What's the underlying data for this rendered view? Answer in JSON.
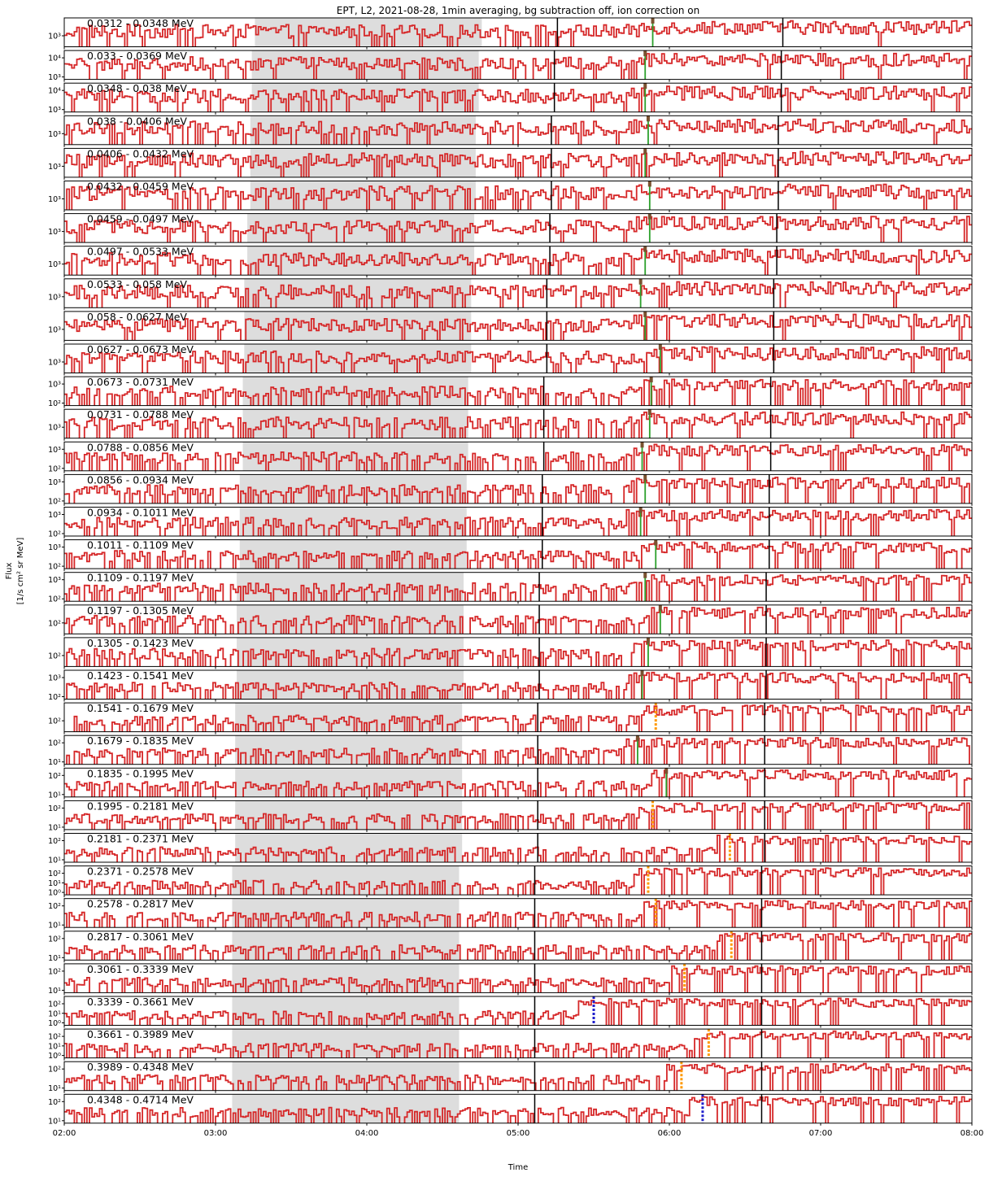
{
  "chart_data": {
    "type": "line",
    "title": "EPT, L2, 2021-08-28, 1min averaging, bg subtraction off, ion correction on",
    "xlabel": "Time",
    "ylabel_line1": "Flux",
    "ylabel_line2": "[1/s cm² sr MeV]",
    "x_ticks": [
      "02:00",
      "03:00",
      "04:00",
      "05:00",
      "06:00",
      "07:00",
      "08:00"
    ],
    "xlim_hours": [
      2.0,
      8.0
    ],
    "y_scale": "log",
    "grid": false,
    "colors": {
      "flux_line": "#d62728",
      "onset_green": "#2ca02c",
      "onset_orange": "#ff9900",
      "onset_blue": "#1f1fcc",
      "background_window": "#dddddd",
      "marker_black": "#000000"
    },
    "panels": [
      {
        "label": "0.0312 - 0.0348 MeV",
        "bg": [
          3.26,
          4.76
        ],
        "black": [
          5.26,
          6.75
        ],
        "onset": {
          "t": 5.89,
          "color": "green"
        },
        "yticks": [
          "10³"
        ],
        "level": [
          500,
          4000
        ]
      },
      {
        "label": "0.033 - 0.0369 MeV",
        "bg": [
          3.24,
          4.74
        ],
        "black": [
          5.24,
          6.74
        ],
        "onset": {
          "t": 5.84,
          "color": "green"
        },
        "yticks": [
          "10⁴",
          "10³"
        ],
        "level": [
          800,
          6000
        ]
      },
      {
        "label": "0.0348 - 0.038 MeV",
        "bg": [
          3.24,
          4.74
        ],
        "black": [
          5.24,
          6.74
        ],
        "onset": {
          "t": 5.84,
          "color": "green"
        },
        "yticks": [
          "10⁴",
          "10³"
        ],
        "level": [
          700,
          5000
        ]
      },
      {
        "label": "0.038 - 0.0406 MeV",
        "bg": [
          3.23,
          4.72
        ],
        "black": [
          5.22,
          6.72
        ],
        "onset": {
          "t": 5.86,
          "color": "green"
        },
        "yticks": [
          "10³"
        ],
        "level": [
          600,
          4000
        ]
      },
      {
        "label": "0.0406 - 0.0432 MeV",
        "bg": [
          3.23,
          4.72
        ],
        "black": [
          5.22,
          6.72
        ],
        "onset": {
          "t": 5.84,
          "color": "green"
        },
        "yticks": [
          "10³"
        ],
        "level": [
          500,
          3000
        ]
      },
      {
        "label": "0.0432 - 0.0459 MeV",
        "bg": [
          3.23,
          4.72
        ],
        "black": [
          5.22,
          6.72
        ],
        "onset": {
          "t": 5.87,
          "color": "green"
        },
        "yticks": [
          "10³"
        ],
        "level": [
          500,
          3000
        ]
      },
      {
        "label": "0.0459 - 0.0497 MeV",
        "bg": [
          3.21,
          4.71
        ],
        "black": [
          5.21,
          6.71
        ],
        "onset": {
          "t": 5.87,
          "color": "green"
        },
        "yticks": [
          "10³"
        ],
        "level": [
          400,
          3000
        ]
      },
      {
        "label": "0.0497 - 0.0533 MeV",
        "bg": [
          3.21,
          4.71
        ],
        "black": [
          5.21,
          6.71
        ],
        "onset": {
          "t": 5.84,
          "color": "green"
        },
        "yticks": [
          "10³"
        ],
        "level": [
          400,
          3000
        ]
      },
      {
        "label": "0.0533 - 0.058 MeV",
        "bg": [
          3.19,
          4.69
        ],
        "black": [
          5.19,
          6.69
        ],
        "onset": {
          "t": 5.81,
          "color": "green"
        },
        "yticks": [
          "10³"
        ],
        "level": [
          400,
          3000
        ]
      },
      {
        "label": "0.058 - 0.0627 MeV",
        "bg": [
          3.19,
          4.69
        ],
        "black": [
          5.19,
          6.69
        ],
        "onset": {
          "t": 5.84,
          "color": "green"
        },
        "yticks": [
          "10³"
        ],
        "level": [
          300,
          2500
        ]
      },
      {
        "label": "0.0627 - 0.0673 MeV",
        "bg": [
          3.19,
          4.69
        ],
        "black": [
          5.19,
          6.69
        ],
        "onset": {
          "t": 5.94,
          "color": "green"
        },
        "yticks": [
          "10³"
        ],
        "level": [
          300,
          2500
        ]
      },
      {
        "label": "0.0673 - 0.0731 MeV",
        "bg": [
          3.18,
          4.67
        ],
        "black": [
          5.17,
          6.67
        ],
        "onset": {
          "t": 5.88,
          "color": "green"
        },
        "yticks": [
          "10³",
          "10²"
        ],
        "level": [
          150,
          2000
        ]
      },
      {
        "label": "0.0731 - 0.0788 MeV",
        "bg": [
          3.18,
          4.67
        ],
        "black": [
          5.17,
          6.67
        ],
        "onset": {
          "t": 5.87,
          "color": "green"
        },
        "yticks": [
          "10³"
        ],
        "level": [
          200,
          1800
        ]
      },
      {
        "label": "0.0788 - 0.0856 MeV",
        "bg": [
          3.18,
          4.67
        ],
        "black": [
          5.17,
          6.67
        ],
        "onset": {
          "t": 5.82,
          "color": "green"
        },
        "yticks": [
          "10³",
          "10²"
        ],
        "level": [
          100,
          1500
        ]
      },
      {
        "label": "0.0856 - 0.0934 MeV",
        "bg": [
          3.16,
          4.66
        ],
        "black": [
          5.16,
          6.66
        ],
        "onset": {
          "t": 5.84,
          "color": "green"
        },
        "yticks": [
          "10³",
          "10²"
        ],
        "level": [
          100,
          1500
        ]
      },
      {
        "label": "0.0934 - 0.1011 MeV",
        "bg": [
          3.16,
          4.66
        ],
        "black": [
          5.16,
          6.66
        ],
        "onset": {
          "t": 5.81,
          "color": "green"
        },
        "yticks": [
          "10³",
          "10²"
        ],
        "level": [
          80,
          1200
        ]
      },
      {
        "label": "0.1011 - 0.1109 MeV",
        "bg": [
          3.16,
          4.66
        ],
        "black": [
          5.16,
          6.66
        ],
        "onset": {
          "t": 5.91,
          "color": "green"
        },
        "yticks": [
          "10³",
          "10²"
        ],
        "level": [
          70,
          1200
        ]
      },
      {
        "label": "0.1109 - 0.1197 MeV",
        "bg": [
          3.14,
          4.64
        ],
        "black": [
          5.14,
          6.64
        ],
        "onset": {
          "t": 5.84,
          "color": "green"
        },
        "yticks": [
          "10³",
          "10²"
        ],
        "level": [
          60,
          1000
        ]
      },
      {
        "label": "0.1197 - 0.1305 MeV",
        "bg": [
          3.14,
          4.64
        ],
        "black": [
          5.14,
          6.64
        ],
        "onset": {
          "t": 5.94,
          "color": "green"
        },
        "yticks": [
          "10²"
        ],
        "level": [
          50,
          800
        ]
      },
      {
        "label": "0.1305 - 0.1423 MeV",
        "bg": [
          3.14,
          4.64
        ],
        "black": [
          5.14,
          6.64
        ],
        "onset": {
          "t": 5.86,
          "color": "green"
        },
        "yticks": [
          "10²"
        ],
        "level": [
          40,
          700
        ]
      },
      {
        "label": "0.1423 - 0.1541 MeV",
        "bg": [
          3.14,
          4.64
        ],
        "black": [
          5.14,
          6.64
        ],
        "onset": {
          "t": 5.82,
          "color": "green"
        },
        "yticks": [
          "10³",
          "10²"
        ],
        "level": [
          30,
          700
        ]
      },
      {
        "label": "0.1541 - 0.1679 MeV",
        "bg": [
          3.13,
          4.63
        ],
        "black": [
          5.13,
          6.63
        ],
        "onset": {
          "t": 5.91,
          "color": "orange"
        },
        "yticks": [
          "10²"
        ],
        "level": [
          20,
          500
        ]
      },
      {
        "label": "0.1679 - 0.1835 MeV",
        "bg": [
          3.13,
          4.63
        ],
        "black": [
          5.13,
          6.63
        ],
        "onset": {
          "t": 5.79,
          "color": "green"
        },
        "yticks": [
          "10²",
          "10¹"
        ],
        "level": [
          15,
          400
        ]
      },
      {
        "label": "0.1835 - 0.1995 MeV",
        "bg": [
          3.13,
          4.63
        ],
        "black": [
          5.13,
          6.63
        ],
        "onset": {
          "t": 5.98,
          "color": "green"
        },
        "yticks": [
          "10²",
          "10¹"
        ],
        "level": [
          10,
          300
        ]
      },
      {
        "label": "0.1995 - 0.2181 MeV",
        "bg": [
          3.13,
          4.63
        ],
        "black": [
          5.13,
          6.63
        ],
        "onset": {
          "t": 5.89,
          "color": "orange"
        },
        "yticks": [
          "10²",
          "10¹"
        ],
        "level": [
          8,
          250
        ]
      },
      {
        "label": "0.2181 - 0.2371 MeV",
        "bg": [
          3.13,
          4.63
        ],
        "black": [
          5.13,
          6.63
        ],
        "onset": {
          "t": 6.4,
          "color": "orange"
        },
        "yticks": [
          "10²",
          "10¹"
        ],
        "level": [
          5,
          200
        ]
      },
      {
        "label": "0.2371 - 0.2578 MeV",
        "bg": [
          3.11,
          4.61
        ],
        "black": [
          5.11,
          6.61
        ],
        "onset": {
          "t": 5.86,
          "color": "orange"
        },
        "yticks": [
          "10²",
          "10¹",
          "10⁰"
        ],
        "level": [
          3,
          150
        ]
      },
      {
        "label": "0.2578 - 0.2817 MeV",
        "bg": [
          3.11,
          4.61
        ],
        "black": [
          5.11,
          6.61
        ],
        "onset": {
          "t": 5.91,
          "color": "orange"
        },
        "yticks": [
          "10²",
          "10¹"
        ],
        "level": [
          4,
          150
        ]
      },
      {
        "label": "0.2817 - 0.3061 MeV",
        "bg": [
          3.11,
          4.61
        ],
        "black": [
          5.11,
          6.61
        ],
        "onset": {
          "t": 6.41,
          "color": "orange"
        },
        "yticks": [
          "10²",
          "10¹"
        ],
        "level": [
          3,
          120
        ]
      },
      {
        "label": "0.3061 - 0.3339 MeV",
        "bg": [
          3.11,
          4.61
        ],
        "black": [
          5.11,
          6.61
        ],
        "onset": {
          "t": 6.1,
          "color": "orange"
        },
        "yticks": [
          "10²",
          "10¹"
        ],
        "level": [
          3,
          120
        ]
      },
      {
        "label": "0.3339 - 0.3661 MeV",
        "bg": [
          3.11,
          4.61
        ],
        "black": [
          5.11,
          6.61
        ],
        "onset": {
          "t": 5.5,
          "color": "blue"
        },
        "yticks": [
          "10²",
          "10¹",
          "10⁰"
        ],
        "level": [
          2,
          100
        ]
      },
      {
        "label": "0.3661 - 0.3989 MeV",
        "bg": [
          3.11,
          4.61
        ],
        "black": [
          5.11,
          6.61
        ],
        "onset": {
          "t": 6.26,
          "color": "orange"
        },
        "yticks": [
          "10²",
          "10¹",
          "10⁰"
        ],
        "level": [
          2,
          100
        ]
      },
      {
        "label": "0.3989 - 0.4348 MeV",
        "bg": [
          3.11,
          4.61
        ],
        "black": [
          5.11,
          6.61
        ],
        "onset": {
          "t": 6.08,
          "color": "orange"
        },
        "yticks": [
          "10²",
          "10¹"
        ],
        "level": [
          3,
          100
        ]
      },
      {
        "label": "0.4348 - 0.4714 MeV",
        "bg": [
          3.11,
          4.61
        ],
        "black": [
          5.11,
          6.61
        ],
        "onset": {
          "t": 6.22,
          "color": "blue"
        },
        "yticks": [
          "10²",
          "10¹"
        ],
        "level": [
          3,
          100
        ]
      }
    ]
  }
}
